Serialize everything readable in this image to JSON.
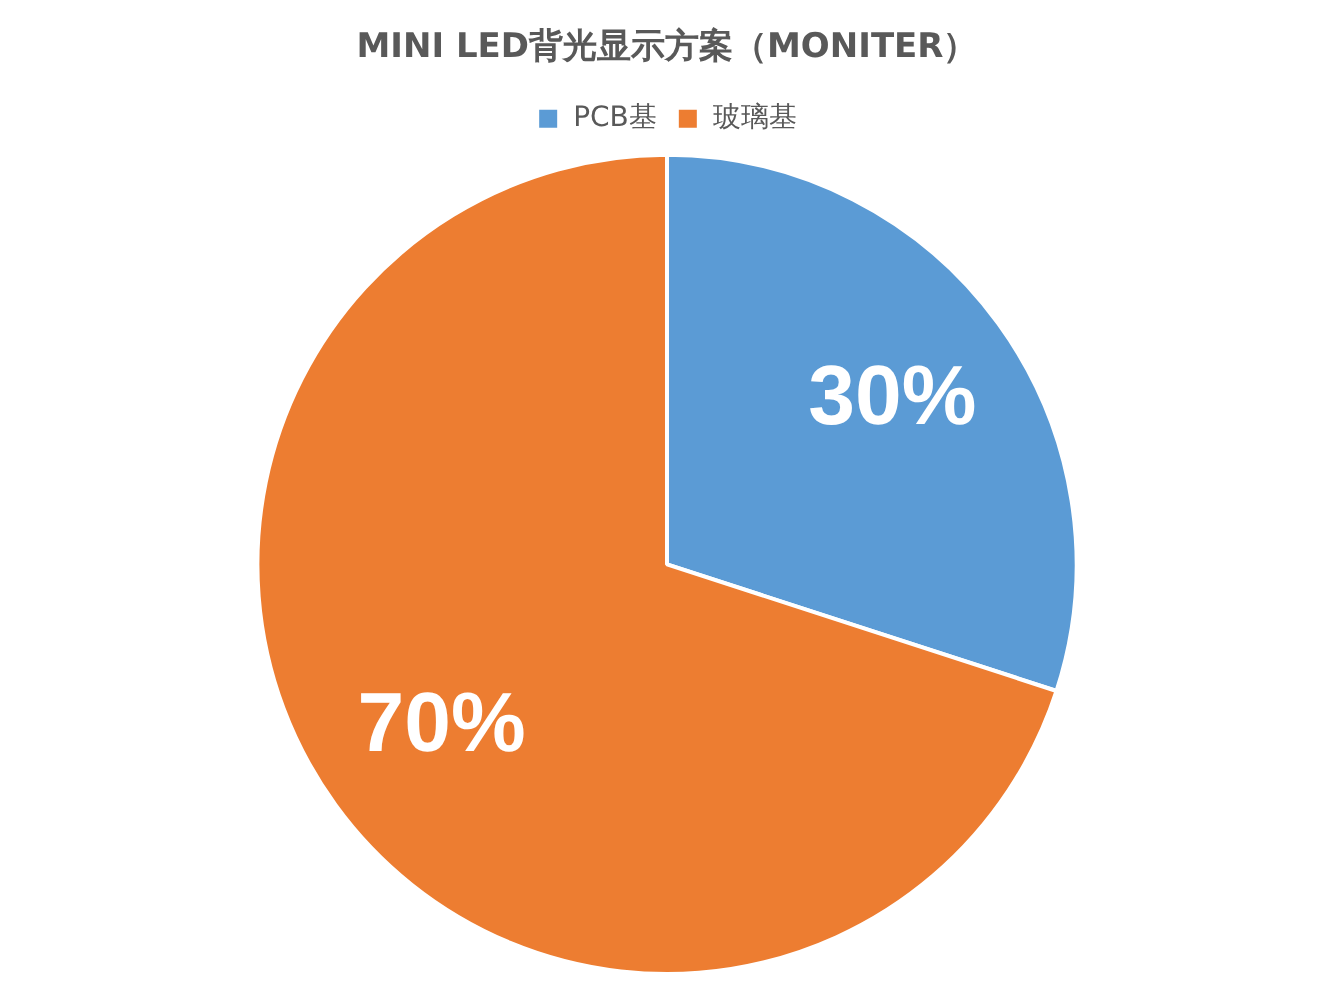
{
  "chart_data": {
    "type": "pie",
    "title": "MINI LED背光显示方案（MONITER）",
    "categories": [
      "PCB基",
      "玻璃基"
    ],
    "values": [
      30,
      70
    ],
    "colors": [
      "#5b9bd5",
      "#ed7d31"
    ],
    "value_labels": [
      "30%",
      "70%"
    ],
    "legend": "top"
  }
}
